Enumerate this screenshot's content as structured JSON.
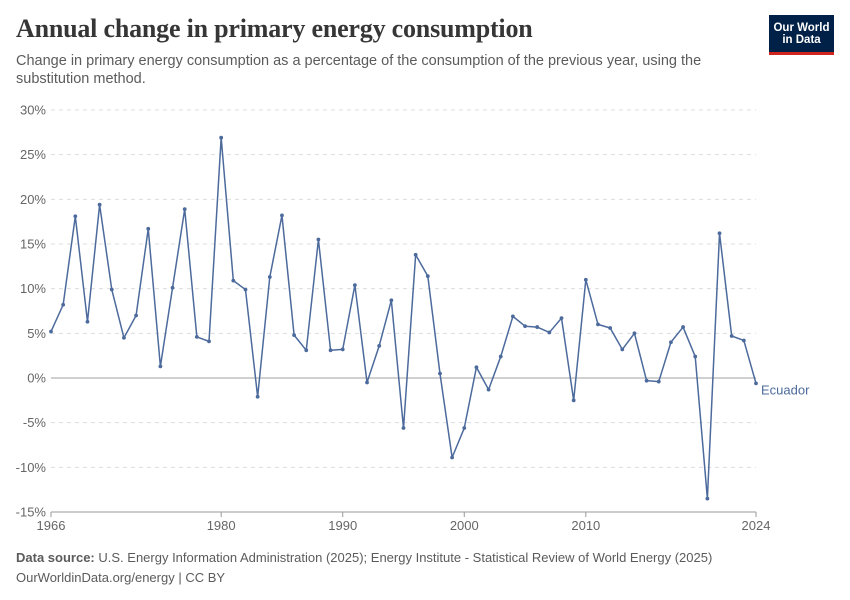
{
  "header": {
    "title": "Annual change in primary energy consumption",
    "subtitle": "Change in primary energy consumption as a percentage of the consumption of the previous year, using the substitution method."
  },
  "logo": {
    "line1": "Our World",
    "line2": "in Data"
  },
  "footer": {
    "source_label": "Data source:",
    "source_text": "U.S. Energy Information Administration (2025); Energy Institute - Statistical Review of World Energy (2025)",
    "credit": "OurWorldinData.org/energy | CC BY"
  },
  "colors": {
    "series": "#4c6a9c",
    "grid": "#dddddd",
    "zero_line": "#a0a0a0"
  },
  "chart_data": {
    "type": "line",
    "title": "Annual change in primary energy consumption",
    "ylim": [
      -15,
      30
    ],
    "yticks": [
      -15,
      -10,
      -5,
      0,
      5,
      10,
      15,
      20,
      25,
      30
    ],
    "ytick_labels": [
      "-15%",
      "-10%",
      "-5%",
      "0%",
      "5%",
      "10%",
      "15%",
      "20%",
      "25%",
      "30%"
    ],
    "xlim": [
      1966,
      2024
    ],
    "xticks": [
      1966,
      1980,
      1990,
      2000,
      2010,
      2024
    ],
    "grid": true,
    "series": [
      {
        "name": "Ecuador",
        "x": [
          1966,
          1967,
          1968,
          1969,
          1970,
          1971,
          1972,
          1973,
          1974,
          1975,
          1976,
          1977,
          1978,
          1979,
          1980,
          1981,
          1982,
          1983,
          1984,
          1985,
          1986,
          1987,
          1988,
          1989,
          1990,
          1991,
          1992,
          1993,
          1994,
          1995,
          1996,
          1997,
          1998,
          1999,
          2000,
          2001,
          2002,
          2003,
          2004,
          2005,
          2006,
          2007,
          2008,
          2009,
          2010,
          2011,
          2012,
          2013,
          2014,
          2015,
          2016,
          2017,
          2018,
          2019,
          2020,
          2021,
          2022,
          2023,
          2024
        ],
        "values": [
          5.2,
          8.2,
          18.1,
          6.3,
          19.4,
          9.9,
          4.5,
          7.0,
          16.7,
          1.3,
          10.1,
          18.9,
          4.6,
          4.1,
          26.9,
          10.9,
          9.9,
          -2.1,
          11.3,
          18.2,
          4.8,
          3.1,
          15.5,
          3.1,
          3.2,
          10.4,
          -0.5,
          3.6,
          8.7,
          -5.6,
          13.8,
          11.4,
          0.5,
          -8.9,
          -5.6,
          1.2,
          -1.3,
          2.4,
          6.9,
          5.8,
          5.7,
          5.1,
          6.7,
          -2.5,
          11.0,
          6.0,
          5.6,
          3.2,
          5.0,
          -0.3,
          -0.4,
          4.0,
          5.7,
          2.4,
          -13.5,
          16.2,
          4.7,
          4.2,
          -0.6
        ]
      }
    ]
  }
}
